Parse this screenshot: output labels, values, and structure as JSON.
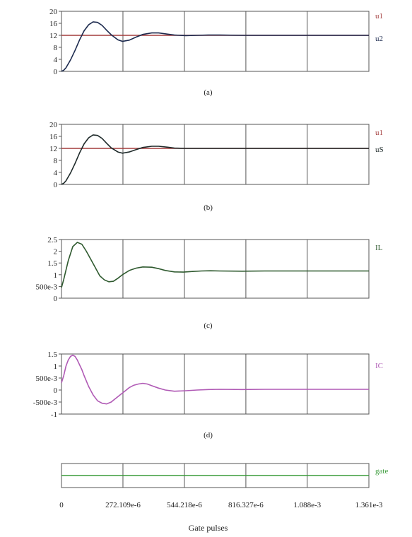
{
  "chart_data": [
    {
      "type": "line",
      "caption": "(a)",
      "ylim": [
        0,
        20
      ],
      "y_ticks": [
        "20",
        "16",
        "12",
        "8",
        "4",
        "0"
      ],
      "series": [
        {
          "name": "u1",
          "color": "#a33c3c",
          "x": [
            0,
            0.001361
          ],
          "y": [
            12,
            12
          ]
        },
        {
          "name": "u2",
          "color": "#1d2b4f",
          "x": [
            0,
            1e-05,
            2e-05,
            4e-05,
            6e-05,
            8e-05,
            0.0001,
            0.00012,
            0.00014,
            0.00016,
            0.00018,
            0.0002,
            0.00022,
            0.00025,
            0.00027,
            0.0003,
            0.00033,
            0.00036,
            0.0004,
            0.00043,
            0.00047,
            0.0005,
            0.00055,
            0.0006,
            0.00065,
            0.0007,
            0.0008,
            0.0009,
            0.001,
            0.0011,
            0.0012,
            0.0013,
            0.001361
          ],
          "y": [
            0,
            0.4,
            1.2,
            3.8,
            7,
            10.5,
            13.5,
            15.5,
            16.5,
            16.3,
            15.3,
            13.7,
            12.2,
            10.5,
            10,
            10.4,
            11.4,
            12.3,
            12.8,
            12.8,
            12.4,
            12.1,
            11.9,
            12.0,
            12.1,
            12.1,
            12.0,
            12.0,
            12.0,
            12.0,
            12.0,
            12.0,
            12.0
          ]
        }
      ]
    },
    {
      "type": "line",
      "caption": "(b)",
      "ylim": [
        0,
        20
      ],
      "y_ticks": [
        "20",
        "16",
        "12",
        "8",
        "4",
        "0"
      ],
      "series": [
        {
          "name": "u1",
          "color": "#a33c3c",
          "x": [
            0,
            0.001361
          ],
          "y": [
            12,
            12
          ]
        },
        {
          "name": "uS",
          "color": "#1e2a2a",
          "x": [
            0,
            1e-05,
            2e-05,
            4e-05,
            6e-05,
            8e-05,
            0.0001,
            0.00012,
            0.00014,
            0.00016,
            0.00018,
            0.0002,
            0.00022,
            0.00025,
            0.00027,
            0.0003,
            0.00033,
            0.00036,
            0.0004,
            0.00043,
            0.00047,
            0.0005,
            0.00055,
            0.0006,
            0.00065,
            0.0007,
            0.0008,
            0.0009,
            0.001,
            0.0011,
            0.0012,
            0.0013,
            0.001361
          ],
          "y": [
            0,
            0.4,
            1.2,
            3.8,
            7,
            10.5,
            13.5,
            15.5,
            16.5,
            16.3,
            15.3,
            13.7,
            12.2,
            10.8,
            10.4,
            10.8,
            11.6,
            12.3,
            12.7,
            12.7,
            12.4,
            12.1,
            12.0,
            12.0,
            12.0,
            12.0,
            12.0,
            12.0,
            12.0,
            12.0,
            12.0,
            12.0,
            12.0
          ]
        }
      ]
    },
    {
      "type": "line",
      "caption": "(c)",
      "ylim": [
        0,
        2.5
      ],
      "y_ticks": [
        "2.5",
        "2",
        "1.5",
        "1",
        "500e-3",
        "0"
      ],
      "series": [
        {
          "name": "IL",
          "color": "#2f5a2f",
          "x": [
            0,
            1e-05,
            3e-05,
            5e-05,
            7e-05,
            9e-05,
            0.00011,
            0.00013,
            0.00015,
            0.00017,
            0.00019,
            0.00021,
            0.00023,
            0.00025,
            0.00027,
            0.0003,
            0.00033,
            0.00036,
            0.0004,
            0.00043,
            0.00046,
            0.0005,
            0.00054,
            0.00058,
            0.00062,
            0.00066,
            0.0007,
            0.0008,
            0.0009,
            0.001,
            0.0011,
            0.0012,
            0.0013,
            0.001361
          ],
          "y": [
            0.45,
            0.8,
            1.6,
            2.2,
            2.38,
            2.3,
            2.0,
            1.65,
            1.3,
            0.95,
            0.78,
            0.7,
            0.72,
            0.85,
            1.0,
            1.18,
            1.28,
            1.33,
            1.32,
            1.26,
            1.18,
            1.12,
            1.11,
            1.14,
            1.16,
            1.17,
            1.16,
            1.15,
            1.16,
            1.16,
            1.16,
            1.16,
            1.16,
            1.16
          ]
        }
      ]
    },
    {
      "type": "line",
      "caption": "(d)",
      "ylim": [
        -1,
        1.5
      ],
      "y_ticks": [
        "1.5",
        "1",
        "500e-3",
        "0",
        "-500e-3",
        "-1"
      ],
      "series": [
        {
          "name": "IC",
          "color": "#b05ab5",
          "x": [
            0,
            1e-05,
            2e-05,
            3e-05,
            4e-05,
            5e-05,
            6e-05,
            7e-05,
            8e-05,
            9e-05,
            0.0001,
            0.00012,
            0.00014,
            0.00016,
            0.00018,
            0.0002,
            0.00022,
            0.00024,
            0.00026,
            0.00028,
            0.0003,
            0.00032,
            0.00034,
            0.00036,
            0.00038,
            0.0004,
            0.00043,
            0.00046,
            0.0005,
            0.00055,
            0.0006,
            0.00065,
            0.0007,
            0.0008,
            0.0009,
            0.001,
            0.0011,
            0.0012,
            0.0013,
            0.001361
          ],
          "y": [
            0.3,
            0.6,
            1.0,
            1.25,
            1.4,
            1.45,
            1.4,
            1.25,
            1.05,
            0.85,
            0.6,
            0.15,
            -0.2,
            -0.45,
            -0.55,
            -0.58,
            -0.5,
            -0.35,
            -0.2,
            -0.05,
            0.1,
            0.2,
            0.25,
            0.28,
            0.25,
            0.18,
            0.08,
            0.0,
            -0.05,
            -0.03,
            0.0,
            0.02,
            0.03,
            0.02,
            0.03,
            0.03,
            0.03,
            0.03,
            0.03,
            0.03
          ]
        }
      ]
    },
    {
      "type": "line",
      "caption": "",
      "ylim": [
        0,
        1
      ],
      "y_ticks": [],
      "series": [
        {
          "name": "gate",
          "color": "#3a9b3a",
          "x": [
            0,
            0.001361
          ],
          "y": [
            0.5,
            0.5
          ]
        }
      ]
    }
  ],
  "x_axis": {
    "xlim": [
      0,
      0.001361
    ],
    "tick_values": [
      0,
      0.000272109,
      0.000544218,
      0.000816327,
      0.001088,
      0.001361
    ],
    "tick_labels": [
      "0",
      "272.109e-6",
      "544.218e-6",
      "816.327e-6",
      "1.088e-3",
      "1.361e-3"
    ],
    "label": "Gate pulses"
  }
}
